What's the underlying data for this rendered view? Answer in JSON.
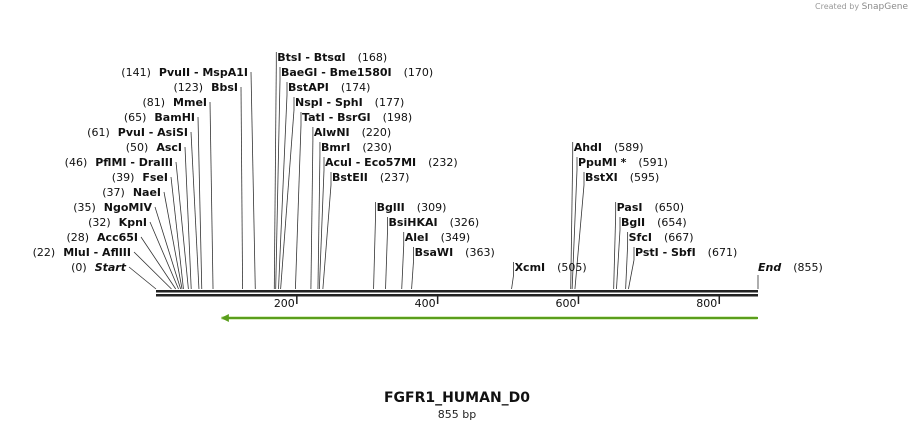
{
  "credit": {
    "prefix": "Created by",
    "brand": "SnapGene"
  },
  "title": "FGFR1_HUMAN_D0",
  "subtitle": "855 bp",
  "sequence_length": 855,
  "ruler": {
    "ticks": [
      200,
      400,
      600,
      800
    ]
  },
  "feature": {
    "name": "orf-arrow",
    "start": 95,
    "end": 855,
    "direction": "reverse",
    "color": "#5a9e1c"
  },
  "enzymes": [
    {
      "label": "Start",
      "pos": 0,
      "pos_text": "(0)",
      "kind": "end",
      "row": 0,
      "side": "left"
    },
    {
      "label": "MluI  -  AflIII",
      "pos": 22,
      "pos_text": "(22)",
      "row": 1,
      "side": "left"
    },
    {
      "label": "Acc65I",
      "pos": 28,
      "pos_text": "(28)",
      "row": 2,
      "side": "left"
    },
    {
      "label": "KpnI",
      "pos": 32,
      "pos_text": "(32)",
      "row": 3,
      "side": "left"
    },
    {
      "label": "NgoMIV",
      "pos": 35,
      "pos_text": "(35)",
      "row": 4,
      "side": "left"
    },
    {
      "label": "NaeI",
      "pos": 37,
      "pos_text": "(37)",
      "row": 5,
      "side": "left"
    },
    {
      "label": "FseI",
      "pos": 39,
      "pos_text": "(39)",
      "row": 6,
      "side": "left"
    },
    {
      "label": "PflMI  -  DraIII",
      "pos": 46,
      "pos_text": "(46)",
      "row": 7,
      "side": "left"
    },
    {
      "label": "AscI",
      "pos": 50,
      "pos_text": "(50)",
      "row": 8,
      "side": "left"
    },
    {
      "label": "PvuI  -  AsiSI",
      "pos": 61,
      "pos_text": "(61)",
      "row": 9,
      "side": "left"
    },
    {
      "label": "BamHI",
      "pos": 65,
      "pos_text": "(65)",
      "row": 10,
      "side": "left"
    },
    {
      "label": "MmeI",
      "pos": 81,
      "pos_text": "(81)",
      "row": 11,
      "side": "left"
    },
    {
      "label": "BbsI",
      "pos": 123,
      "pos_text": "(123)",
      "row": 12,
      "side": "left"
    },
    {
      "label": "PvuII  -  MspA1I",
      "pos": 141,
      "pos_text": "(141)",
      "row": 13,
      "side": "left"
    },
    {
      "label": "BtsI  -  BtsαI",
      "pos": 168,
      "pos_text": "(168)",
      "row": 14,
      "side": "right"
    },
    {
      "label": "BaeGI  -  Bme1580I",
      "pos": 170,
      "pos_text": "(170)",
      "row": 13,
      "side": "right"
    },
    {
      "label": "BstAPI",
      "pos": 174,
      "pos_text": "(174)",
      "row": 12,
      "side": "right"
    },
    {
      "label": "NspI  -  SphI",
      "pos": 177,
      "pos_text": "(177)",
      "row": 11,
      "side": "right"
    },
    {
      "label": "TatI  -  BsrGI",
      "pos": 198,
      "pos_text": "(198)",
      "row": 10,
      "side": "right"
    },
    {
      "label": "AlwNI",
      "pos": 220,
      "pos_text": "(220)",
      "row": 9,
      "side": "right"
    },
    {
      "label": "BmrI",
      "pos": 230,
      "pos_text": "(230)",
      "row": 8,
      "side": "right"
    },
    {
      "label": "AcuI  -  Eco57MI",
      "pos": 232,
      "pos_text": "(232)",
      "row": 7,
      "side": "right"
    },
    {
      "label": "BstEII",
      "pos": 237,
      "pos_text": "(237)",
      "row": 6,
      "side": "right"
    },
    {
      "label": "BglII",
      "pos": 309,
      "pos_text": "(309)",
      "row": 4,
      "side": "right"
    },
    {
      "label": "BsiHKAI",
      "pos": 326,
      "pos_text": "(326)",
      "row": 3,
      "side": "right"
    },
    {
      "label": "AleI",
      "pos": 349,
      "pos_text": "(349)",
      "row": 2,
      "side": "right"
    },
    {
      "label": "BsaWI",
      "pos": 363,
      "pos_text": "(363)",
      "row": 1,
      "side": "right"
    },
    {
      "label": "XcmI",
      "pos": 505,
      "pos_text": "(505)",
      "row": 0,
      "side": "right"
    },
    {
      "label": "AhdI",
      "pos": 589,
      "pos_text": "(589)",
      "row": 8,
      "side": "right"
    },
    {
      "label": "PpuMI *",
      "pos": 591,
      "pos_text": "(591)",
      "row": 7,
      "side": "right"
    },
    {
      "label": "BstXI",
      "pos": 595,
      "pos_text": "(595)",
      "row": 6,
      "side": "right"
    },
    {
      "label": "PasI",
      "pos": 650,
      "pos_text": "(650)",
      "row": 4,
      "side": "right"
    },
    {
      "label": "BglI",
      "pos": 654,
      "pos_text": "(654)",
      "row": 3,
      "side": "right"
    },
    {
      "label": "SfcI",
      "pos": 667,
      "pos_text": "(667)",
      "row": 2,
      "side": "right"
    },
    {
      "label": "PstI  -  SbfI",
      "pos": 671,
      "pos_text": "(671)",
      "row": 1,
      "side": "right"
    },
    {
      "label": "End",
      "pos": 855,
      "pos_text": "(855)",
      "kind": "end",
      "row": 0,
      "side": "right"
    }
  ]
}
